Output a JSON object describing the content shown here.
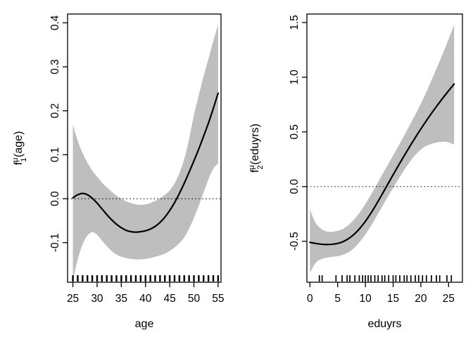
{
  "figure": {
    "background": "#ffffff",
    "band_color": "#bebebe",
    "line_color": "#000000"
  },
  "chart_data": [
    {
      "type": "line",
      "panel": "left",
      "xlabel": "age",
      "ylabel": {
        "base": "f",
        "sub": "1",
        "sup": "μ",
        "arg": "(age)",
        "text": "f_1^μ(age)"
      },
      "xlim": [
        23.9,
        55.6
      ],
      "ylim": [
        -0.19,
        0.42
      ],
      "xticks": [
        25,
        30,
        35,
        40,
        45,
        50,
        55
      ],
      "xtick_labels": [
        "25",
        "30",
        "35",
        "40",
        "45",
        "50",
        "55"
      ],
      "yticks": [
        -0.1,
        0.0,
        0.1,
        0.2,
        0.3,
        0.4
      ],
      "ytick_labels": [
        "-0.1",
        "0.0",
        "0.1",
        "0.2",
        "0.3",
        "0.4"
      ],
      "zero_line": 0,
      "grid": false,
      "legend": null,
      "x": [
        25,
        26,
        27,
        28,
        29,
        30,
        31,
        32,
        33,
        34,
        35,
        36,
        37,
        38,
        39,
        40,
        41,
        42,
        43,
        44,
        45,
        46,
        47,
        48,
        49,
        50,
        51,
        52,
        53,
        54,
        55
      ],
      "series": [
        {
          "name": "fit",
          "values": [
            0.002,
            0.009,
            0.012,
            0.009,
            0.001,
            -0.01,
            -0.023,
            -0.036,
            -0.048,
            -0.058,
            -0.066,
            -0.072,
            -0.075,
            -0.076,
            -0.075,
            -0.073,
            -0.069,
            -0.063,
            -0.054,
            -0.042,
            -0.027,
            -0.009,
            0.012,
            0.035,
            0.06,
            0.086,
            0.113,
            0.142,
            0.172,
            0.205,
            0.24
          ]
        },
        {
          "name": "ci_upper",
          "values": [
            0.168,
            0.132,
            0.104,
            0.082,
            0.064,
            0.05,
            0.037,
            0.026,
            0.016,
            0.007,
            0.0,
            -0.006,
            -0.01,
            -0.013,
            -0.014,
            -0.013,
            -0.01,
            -0.005,
            0.001,
            0.009,
            0.019,
            0.035,
            0.058,
            0.09,
            0.135,
            0.19,
            0.235,
            0.278,
            0.318,
            0.358,
            0.396
          ]
        },
        {
          "name": "ci_lower",
          "values": [
            -0.185,
            -0.138,
            -0.104,
            -0.084,
            -0.076,
            -0.082,
            -0.095,
            -0.108,
            -0.119,
            -0.127,
            -0.132,
            -0.135,
            -0.137,
            -0.138,
            -0.138,
            -0.137,
            -0.135,
            -0.132,
            -0.129,
            -0.125,
            -0.119,
            -0.111,
            -0.101,
            -0.088,
            -0.068,
            -0.044,
            -0.016,
            0.014,
            0.044,
            0.068,
            0.08
          ]
        }
      ],
      "rug": [
        25,
        26,
        27,
        28,
        29,
        30,
        31,
        32,
        33,
        34,
        35,
        36,
        37,
        38,
        39,
        40,
        41,
        42,
        43,
        44,
        45,
        46,
        47,
        48,
        49,
        50,
        51,
        52,
        53,
        54,
        55
      ],
      "rug_weight": 2.4
    },
    {
      "type": "line",
      "panel": "right",
      "xlabel": "eduyrs",
      "ylabel": {
        "base": "f",
        "sub": "2",
        "sup": "μ",
        "arg": "(eduyrs)",
        "text": "f_2^μ(eduyrs)"
      },
      "xlim": [
        -0.55,
        27.5
      ],
      "ylim": [
        -0.875,
        1.578
      ],
      "xticks": [
        0,
        5,
        10,
        15,
        20,
        25
      ],
      "xtick_labels": [
        "0",
        "5",
        "10",
        "15",
        "20",
        "25"
      ],
      "yticks": [
        -0.5,
        0.0,
        0.5,
        1.0,
        1.5
      ],
      "ytick_labels": [
        "-0.5",
        "0.0",
        "0.5",
        "1.0",
        "1.5"
      ],
      "zero_line": 0,
      "grid": false,
      "legend": null,
      "x": [
        0,
        1,
        2,
        3,
        4,
        5,
        6,
        7,
        8,
        9,
        10,
        11,
        12,
        13,
        14,
        15,
        16,
        17,
        18,
        19,
        20,
        21,
        22,
        23,
        24,
        25,
        26
      ],
      "series": [
        {
          "name": "fit",
          "values": [
            -0.51,
            -0.52,
            -0.527,
            -0.53,
            -0.528,
            -0.52,
            -0.503,
            -0.475,
            -0.435,
            -0.382,
            -0.318,
            -0.243,
            -0.16,
            -0.072,
            0.018,
            0.108,
            0.196,
            0.282,
            0.366,
            0.448,
            0.527,
            0.603,
            0.676,
            0.745,
            0.812,
            0.876,
            0.938
          ]
        },
        {
          "name": "ci_upper",
          "values": [
            -0.21,
            -0.33,
            -0.385,
            -0.41,
            -0.415,
            -0.405,
            -0.385,
            -0.35,
            -0.298,
            -0.235,
            -0.16,
            -0.075,
            0.015,
            0.105,
            0.195,
            0.285,
            0.375,
            0.468,
            0.562,
            0.658,
            0.758,
            0.865,
            0.982,
            1.1,
            1.222,
            1.348,
            1.478
          ]
        },
        {
          "name": "ci_lower",
          "values": [
            -0.79,
            -0.7,
            -0.665,
            -0.65,
            -0.643,
            -0.636,
            -0.623,
            -0.6,
            -0.56,
            -0.505,
            -0.438,
            -0.36,
            -0.273,
            -0.185,
            -0.098,
            -0.012,
            0.072,
            0.152,
            0.225,
            0.288,
            0.338,
            0.372,
            0.392,
            0.404,
            0.41,
            0.404,
            0.385
          ]
        }
      ],
      "rug": [
        1.7,
        2.2,
        4.7,
        5.8,
        6.7,
        7.2,
        8.1,
        8.9,
        9.5,
        10,
        10.5,
        11,
        11.7,
        12.3,
        13,
        13.5,
        14.2,
        15,
        15.5,
        16.2,
        17,
        17.5,
        18.2,
        19,
        19.6,
        20.3,
        21,
        21.9,
        22.8,
        23.4,
        24.7,
        25.5
      ],
      "rug_weight": 1.7
    }
  ]
}
